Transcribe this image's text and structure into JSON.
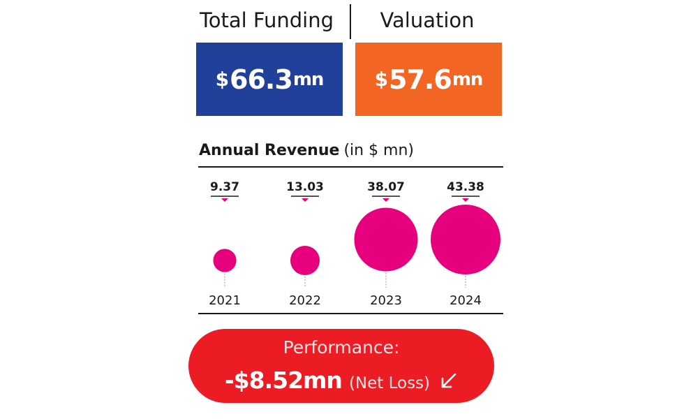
{
  "header": {
    "funding_label": "Total Funding",
    "valuation_label": "Valuation"
  },
  "funding": {
    "currency": "$",
    "value": "66.3",
    "unit": "mn",
    "color": "#21409a"
  },
  "valuation": {
    "currency": "$",
    "value": "57.6",
    "unit": "mn",
    "color": "#f26522"
  },
  "revenue": {
    "title_bold": "Annual Revenue",
    "title_light": "(in $ mn)"
  },
  "chart_data": {
    "type": "scatter",
    "title": "Annual Revenue (in $ mn)",
    "categories": [
      "2021",
      "2022",
      "2023",
      "2024"
    ],
    "values": [
      9.37,
      13.03,
      38.07,
      43.38
    ],
    "value_labels": [
      "9.37",
      "13.03",
      "38.07",
      "43.38"
    ],
    "marker": "bubble",
    "color": "#e6007e",
    "grid": false
  },
  "performance": {
    "label": "Performance:",
    "value": "-$8.52mn",
    "note": "(Net Loss)",
    "icon": "arrow-down-left-icon",
    "color": "#ec1c24"
  }
}
